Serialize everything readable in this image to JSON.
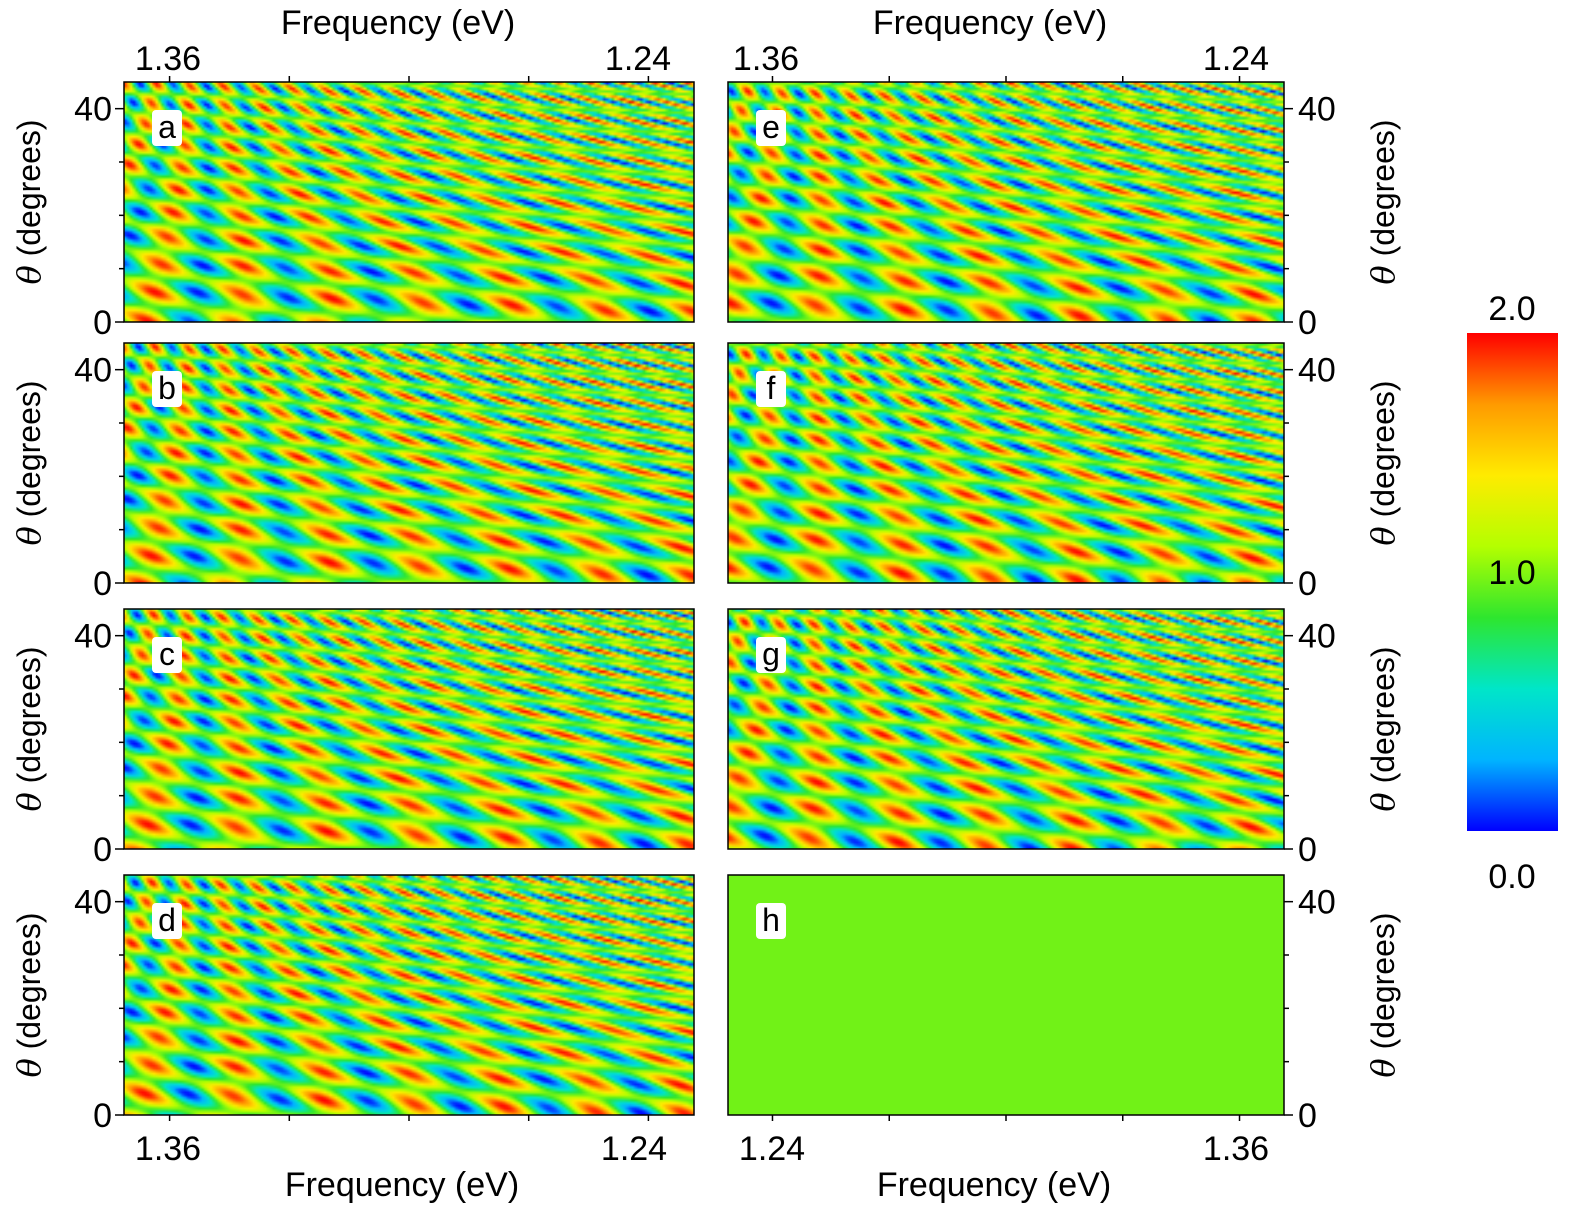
{
  "chart_data": {
    "type": "heatmap",
    "description_axes": "theta vs frequency intensity maps",
    "color_scale": {
      "min": 0.0,
      "mid": 1.0,
      "max": 2.0,
      "tick_labels": [
        "2.0",
        "1.0",
        "0.0"
      ],
      "colors": [
        "#0000ff",
        "#00b4ff",
        "#00e6c8",
        "#2ee62e",
        "#b4ff00",
        "#ffeb00",
        "#ff9a00",
        "#ff0000"
      ]
    },
    "top_axis": {
      "left": {
        "xlabel": "Frequency (eV)",
        "ticks": [
          "1.36",
          "1.24"
        ]
      },
      "right": {
        "xlabel": "Frequency (eV)",
        "ticks": [
          "1.36",
          "1.24"
        ]
      }
    },
    "bottom_axis": {
      "left": {
        "xlabel": "Frequency (eV)",
        "ticks": [
          "1.36",
          "1.24"
        ]
      },
      "right": {
        "xlabel": "Frequency (eV)",
        "ticks": [
          "1.24",
          "1.36"
        ]
      }
    },
    "ylabel": "θ (degrees)",
    "ylabel_symbol": "θ",
    "ylabel_unit": " (degrees)",
    "ylim": [
      0,
      45
    ],
    "yticks": [
      "0",
      "40"
    ],
    "panels": [
      {
        "label": "a",
        "column": "left",
        "row": 0,
        "constant": null,
        "phase": 0.0,
        "variant": 0
      },
      {
        "label": "b",
        "column": "left",
        "row": 1,
        "constant": null,
        "phase": 0.08,
        "variant": 1
      },
      {
        "label": "c",
        "column": "left",
        "row": 2,
        "constant": null,
        "phase": 0.16,
        "variant": 2
      },
      {
        "label": "d",
        "column": "left",
        "row": 3,
        "constant": null,
        "phase": 0.24,
        "variant": 3
      },
      {
        "label": "e",
        "column": "right",
        "row": 0,
        "constant": null,
        "phase": 0.5,
        "variant": 4
      },
      {
        "label": "f",
        "column": "right",
        "row": 1,
        "constant": null,
        "phase": 0.58,
        "variant": 5
      },
      {
        "label": "g",
        "column": "right",
        "row": 2,
        "constant": null,
        "phase": 0.66,
        "variant": 6
      },
      {
        "label": "h",
        "column": "right",
        "row": 3,
        "constant": 1.0,
        "phase": 0,
        "variant": 7
      }
    ]
  }
}
